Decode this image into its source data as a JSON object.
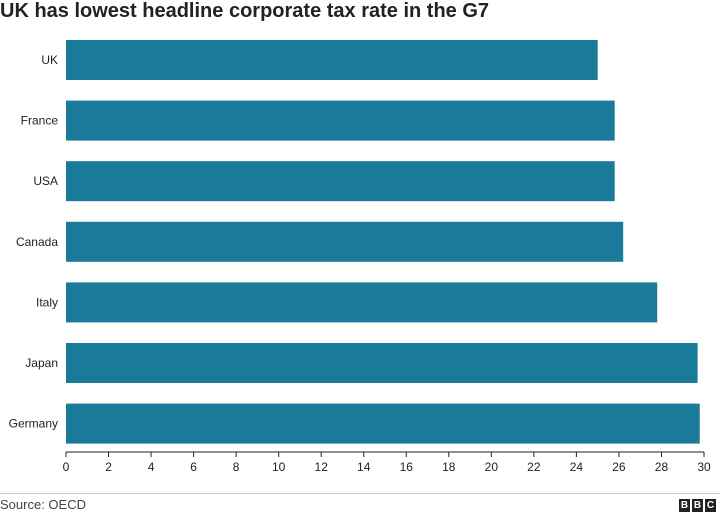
{
  "title": "UK has lowest headline corporate tax rate in the G7",
  "source": "Source: OECD",
  "logo": {
    "letters": [
      "B",
      "B",
      "C"
    ]
  },
  "colors": {
    "bar": "#1a7a9a",
    "axis": "#222222",
    "text": "#222222"
  },
  "chart_data": {
    "type": "bar",
    "orientation": "horizontal",
    "categories": [
      "UK",
      "France",
      "USA",
      "Canada",
      "Italy",
      "Japan",
      "Germany"
    ],
    "values": [
      25.0,
      25.8,
      25.8,
      26.2,
      27.8,
      29.7,
      29.8
    ],
    "xlim": [
      0,
      30
    ],
    "xticks": [
      0,
      2,
      4,
      6,
      8,
      10,
      12,
      14,
      16,
      18,
      20,
      22,
      24,
      26,
      28,
      30
    ],
    "grid": false,
    "legend": "none"
  }
}
